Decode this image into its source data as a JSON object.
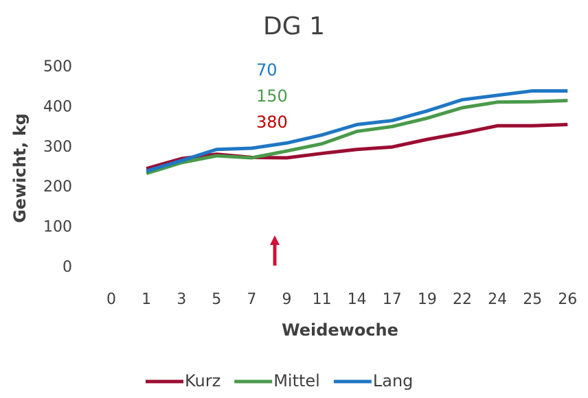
{
  "chart_data": {
    "type": "line",
    "title": "DG 1",
    "x_label": "Weidewoche",
    "y_label": "Gewicht, kg",
    "categories": [
      "0",
      "1",
      "3",
      "5",
      "7",
      "9",
      "11",
      "14",
      "17",
      "19",
      "22",
      "24",
      "25",
      "26"
    ],
    "series": [
      {
        "name": "Kurz",
        "color": "#9b0d32",
        "values": [
          null,
          247,
          272,
          283,
          275,
          274,
          285,
          295,
          301,
          320,
          336,
          354,
          354,
          357
        ]
      },
      {
        "name": "Mittel",
        "color": "#4a9a4a",
        "values": [
          null,
          235,
          262,
          279,
          274,
          291,
          309,
          340,
          352,
          373,
          399,
          413,
          414,
          417
        ]
      },
      {
        "name": "Lang",
        "color": "#1f77c4",
        "values": [
          null,
          241,
          267,
          295,
          298,
          311,
          331,
          357,
          367,
          391,
          419,
          430,
          441,
          441
        ]
      }
    ],
    "annotations": [
      {
        "text": "70",
        "color": "#1f77c4"
      },
      {
        "text": "150",
        "color": "#4a9a4a"
      },
      {
        "text": "380",
        "color": "#c00000"
      }
    ],
    "ylim": [
      0,
      500
    ],
    "yticks": [
      0,
      100,
      200,
      300,
      400,
      500
    ],
    "grid": false,
    "legend": "bottom"
  }
}
